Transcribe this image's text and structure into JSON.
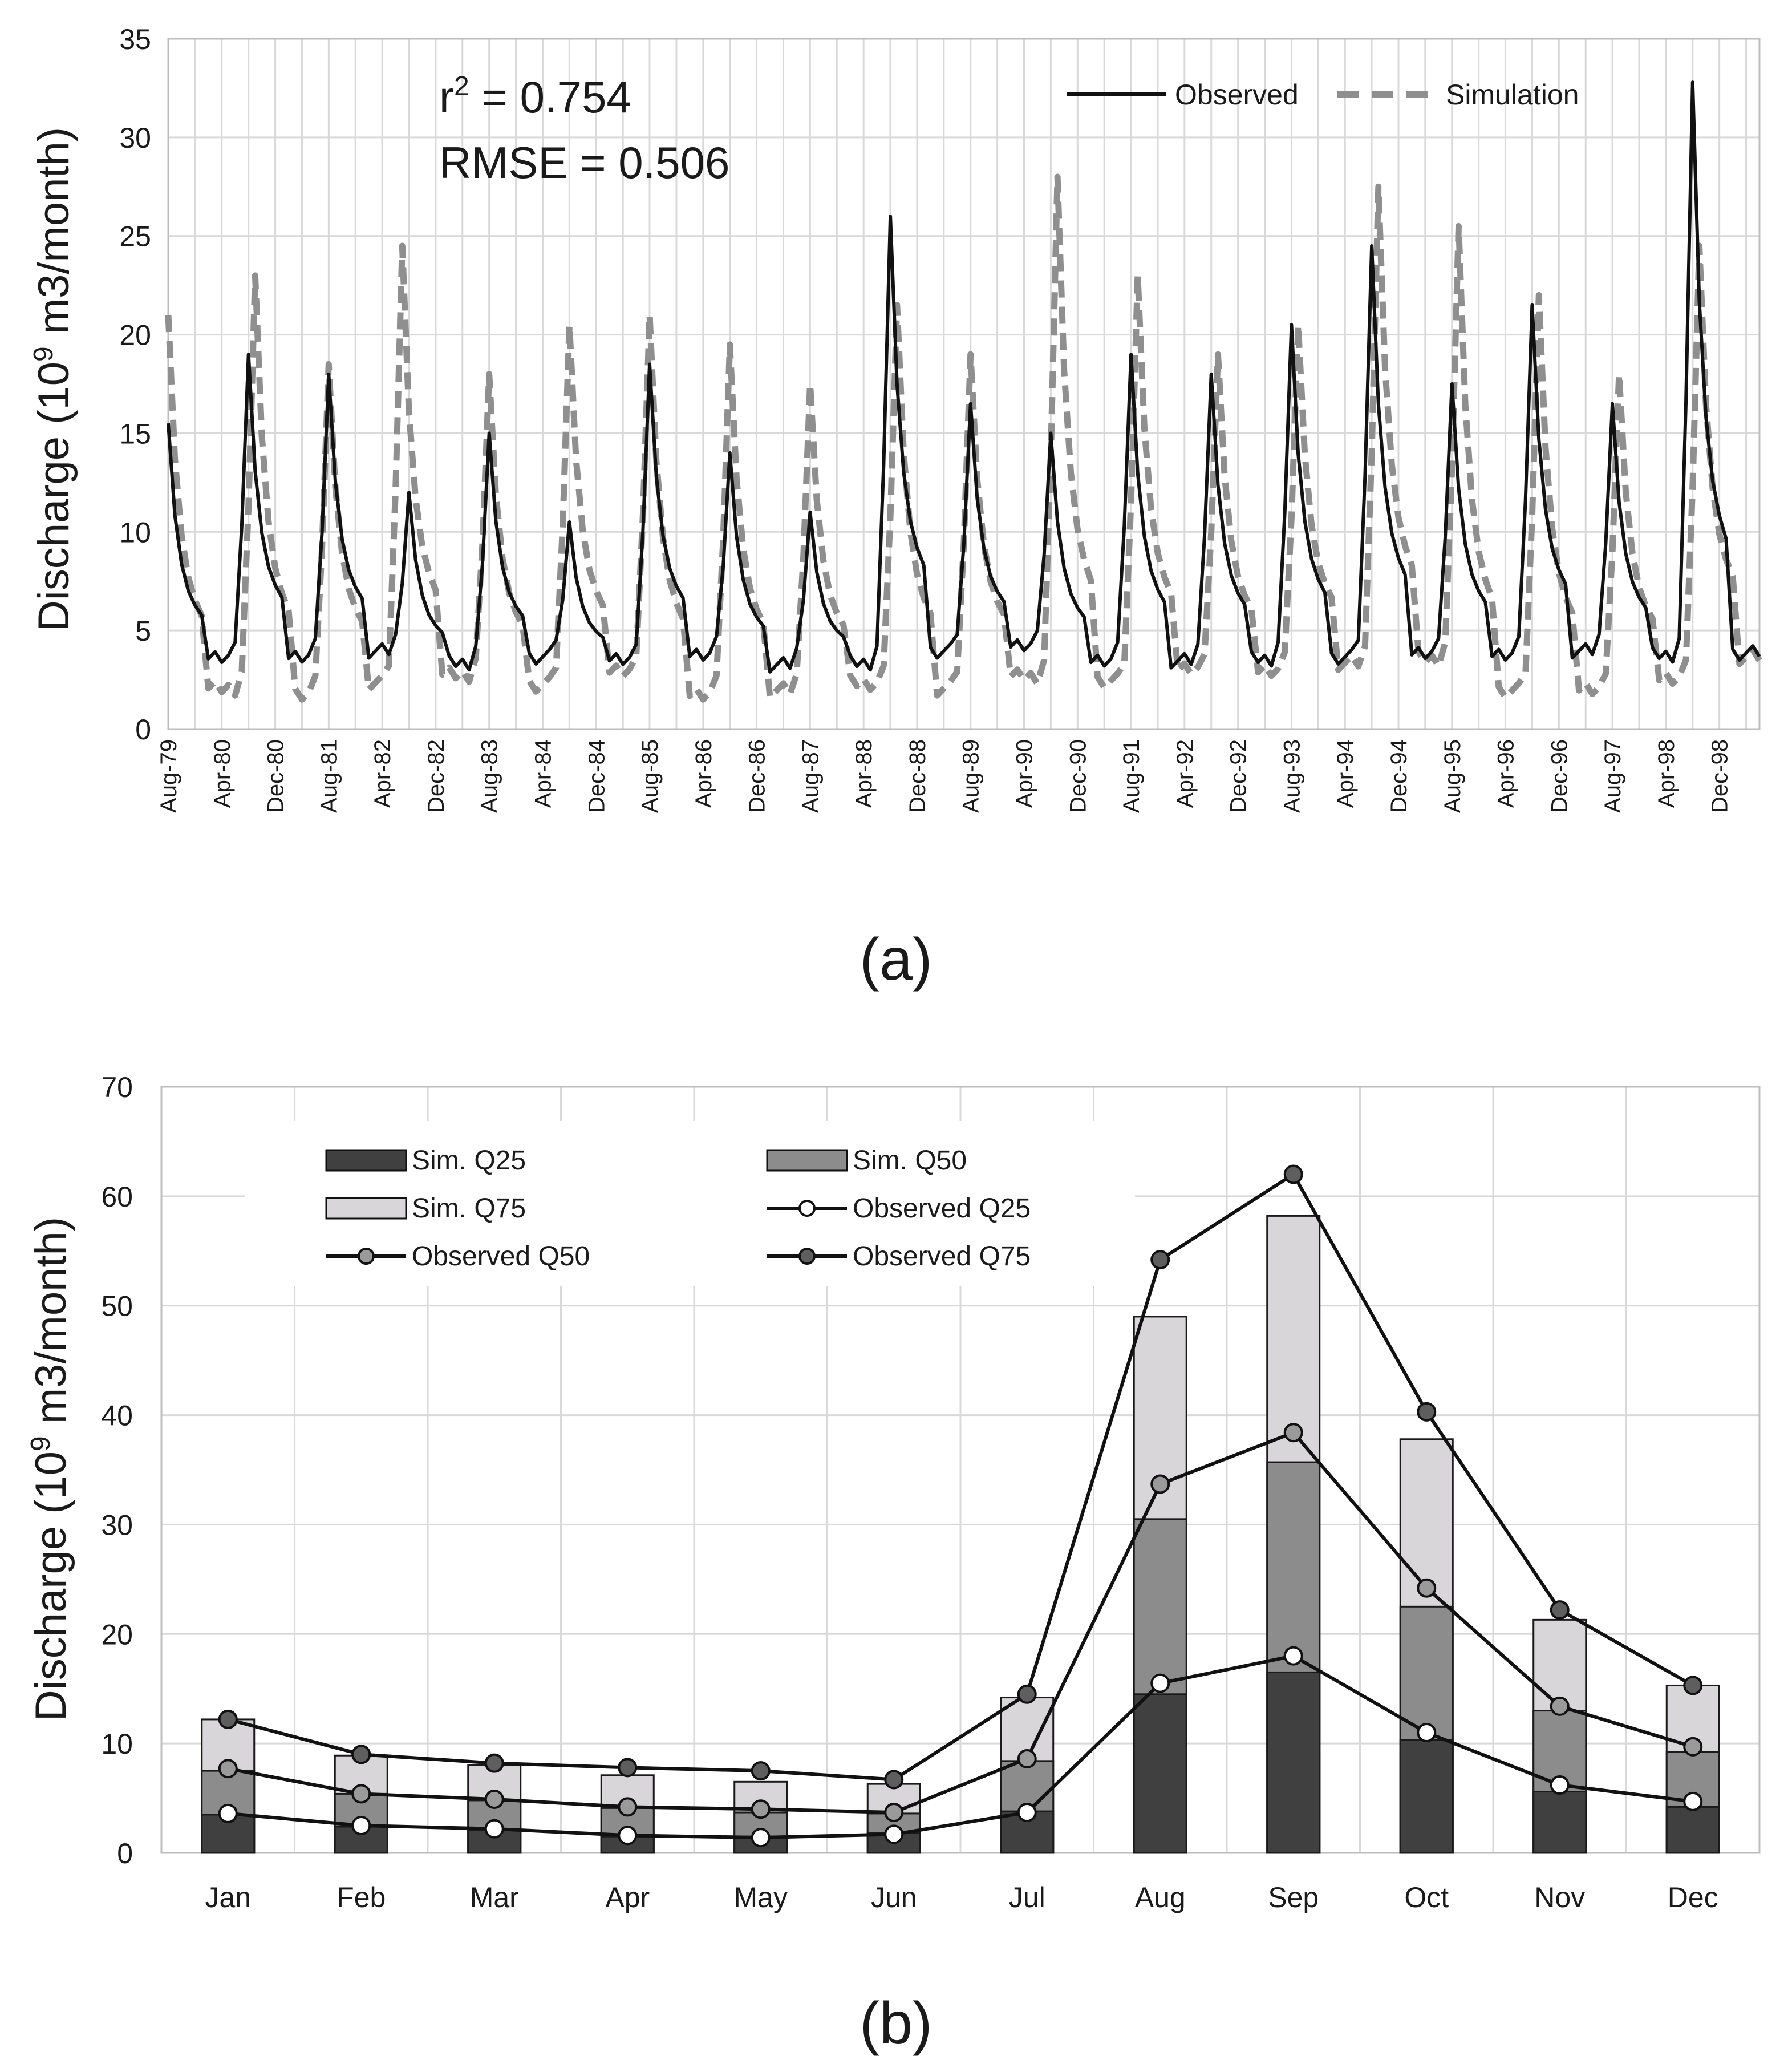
{
  "chart_data": [
    {
      "type": "line",
      "panel_label": "(a)",
      "title": "",
      "xlabel": "",
      "ylabel": "Discharge (10⁹ m3/month)",
      "ylabel_parts": {
        "pre": "Discharge (10",
        "sup": "9",
        "post": " m3/month)"
      },
      "ylim": [
        0,
        35
      ],
      "yticks": [
        "0",
        "5",
        "10",
        "15",
        "20",
        "25",
        "30",
        "35"
      ],
      "xlim_months": [
        0,
        238
      ],
      "x_tick_labels": [
        "Aug-79",
        "Apr-80",
        "Dec-80",
        "Aug-81",
        "Apr-82",
        "Dec-82",
        "Aug-83",
        "Apr-84",
        "Dec-84",
        "Aug-85",
        "Apr-86",
        "Dec-86",
        "Aug-87",
        "Apr-88",
        "Dec-88",
        "Aug-89",
        "Apr-90",
        "Dec-90",
        "Aug-91",
        "Apr-92",
        "Dec-92",
        "Aug-93",
        "Apr-94",
        "Dec-94",
        "Aug-95",
        "Apr-96",
        "Dec-96",
        "Aug-97",
        "Apr-98",
        "Dec-98"
      ],
      "x_tick_step_months": 8,
      "annotations": [
        {
          "text": "r² = 0.754",
          "base": "r",
          "sup": "2",
          "rest": " = 0.754"
        },
        {
          "text": "RMSE = 0.506"
        }
      ],
      "legend_position": "top-right",
      "series": [
        {
          "name": "Observed",
          "style": "solid",
          "color": "#111111",
          "peaks": [
            [
              0,
              15.5
            ],
            [
              12,
              19
            ],
            [
              24,
              18
            ],
            [
              36,
              12
            ],
            [
              48,
              15
            ],
            [
              60,
              10.5
            ],
            [
              72,
              18.5
            ],
            [
              84,
              14
            ],
            [
              96,
              11
            ],
            [
              108,
              26
            ],
            [
              120,
              16.5
            ],
            [
              132,
              15
            ],
            [
              144,
              19
            ],
            [
              156,
              18
            ],
            [
              168,
              20.5
            ],
            [
              180,
              24.5
            ],
            [
              192,
              17.5
            ],
            [
              204,
              21.5
            ],
            [
              216,
              16.5
            ],
            [
              228,
              32.8
            ]
          ],
          "troughs": [
            3.2,
            3.4,
            3.6,
            3.0,
            3.3,
            3.1,
            3.5,
            2.9,
            3.0,
            3.6,
            3.8,
            3.2,
            3.1,
            3.2,
            3.3,
            3.4,
            3.5,
            3.6,
            3.4,
            3.5
          ]
        },
        {
          "name": "Simulation",
          "style": "dashed",
          "color": "#8f8f8f",
          "peaks": [
            [
              0,
              21
            ],
            [
              13,
              23
            ],
            [
              24,
              18.5
            ],
            [
              35,
              24.5
            ],
            [
              48,
              18
            ],
            [
              60,
              20.5
            ],
            [
              72,
              21
            ],
            [
              84,
              19.5
            ],
            [
              96,
              17.5
            ],
            [
              109,
              21.5
            ],
            [
              120,
              19
            ],
            [
              133,
              28
            ],
            [
              145,
              23
            ],
            [
              157,
              19
            ],
            [
              169,
              20.5
            ],
            [
              181,
              27.5
            ],
            [
              193,
              25.5
            ],
            [
              205,
              22
            ],
            [
              217,
              18
            ],
            [
              229,
              24.5
            ]
          ],
          "troughs": [
            1.7,
            1.5,
            2.0,
            2.4,
            1.9,
            2.5,
            1.5,
            1.6,
            2.0,
            1.7,
            2.3,
            2.1,
            2.6,
            2.7,
            3.0,
            3.2,
            1.6,
            1.6,
            2.3,
            3.3
          ]
        }
      ]
    },
    {
      "type": "bar",
      "panel_label": "(b)",
      "title": "",
      "xlabel": "",
      "ylabel": "Discharge (10⁹ m3/month)",
      "ylabel_parts": {
        "pre": "Discharge (10",
        "sup": "9",
        "post": " m3/month)"
      },
      "ylim": [
        0,
        70
      ],
      "yticks": [
        "0",
        "10",
        "20",
        "30",
        "40",
        "50",
        "60",
        "70"
      ],
      "categories": [
        "Jan",
        "Feb",
        "Mar",
        "Apr",
        "May",
        "Jun",
        "Jul",
        "Aug",
        "Sep",
        "Oct",
        "Nov",
        "Dec"
      ],
      "legend_position": "top-left",
      "bar_series": [
        {
          "name": "Sim. Q25",
          "color": "#404040",
          "values": [
            3.5,
            2.4,
            2.1,
            1.5,
            1.5,
            1.8,
            3.8,
            14.5,
            16.5,
            10.3,
            5.6,
            4.2
          ]
        },
        {
          "name": "Sim. Q50",
          "color": "#8c8c8c",
          "values": [
            7.5,
            5.4,
            4.8,
            4.1,
            3.7,
            3.6,
            8.4,
            30.5,
            35.7,
            22.5,
            13.0,
            9.2
          ]
        },
        {
          "name": "Sim. Q75",
          "color": "#d8d6d8",
          "values": [
            12.2,
            8.9,
            8.0,
            7.1,
            6.5,
            6.3,
            14.2,
            49.0,
            58.2,
            37.8,
            21.3,
            15.3
          ]
        }
      ],
      "line_series": [
        {
          "name": "Observed Q25",
          "marker_fill": "#ffffff",
          "values": [
            3.6,
            2.5,
            2.2,
            1.6,
            1.4,
            1.7,
            3.7,
            15.5,
            18.0,
            11.0,
            6.2,
            4.7
          ]
        },
        {
          "name": "Observed Q50",
          "marker_fill": "#9a9a9a",
          "values": [
            7.7,
            5.4,
            4.9,
            4.2,
            4.0,
            3.7,
            8.6,
            33.7,
            38.4,
            24.2,
            13.4,
            9.7
          ]
        },
        {
          "name": "Observed Q75",
          "marker_fill": "#5e5e5e",
          "values": [
            12.2,
            9.0,
            8.2,
            7.8,
            7.5,
            6.7,
            14.5,
            54.2,
            62.0,
            40.3,
            22.2,
            15.3
          ]
        }
      ]
    }
  ]
}
